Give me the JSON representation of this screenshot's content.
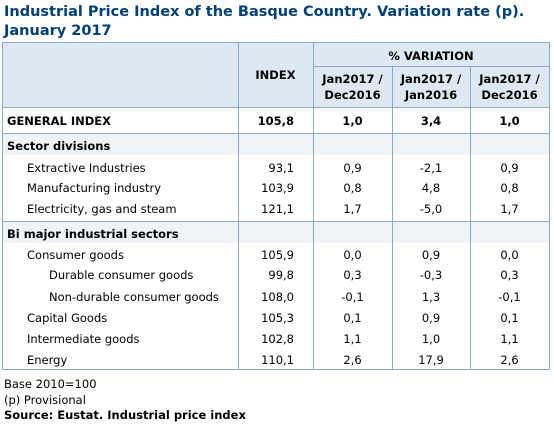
{
  "title_line1": "Industrial Price Index of the Basque Country. Variation rate (p).",
  "title_line2": "January 2017",
  "header": {
    "index": "INDEX",
    "variation": "% VARIATION",
    "col1": [
      "Jan2017 /",
      "Dec2016"
    ],
    "col2": [
      "Jan2017 /",
      "Jan2016"
    ],
    "col3": [
      "Jan2017 /",
      "Dec2016"
    ]
  },
  "general": {
    "label": "GENERAL INDEX",
    "index": "105,8",
    "v1": "1,0",
    "v2": "3,4",
    "v3": "1,0"
  },
  "sectors": {
    "title": "Sector divisions",
    "rows": [
      {
        "label": "Extractive Industries",
        "index": "93,1",
        "v1": "0,9",
        "v2": "-2,1",
        "v3": "0,9"
      },
      {
        "label": "Manufacturing industry",
        "index": "103,9",
        "v1": "0,8",
        "v2": "4,8",
        "v3": "0,8"
      },
      {
        "label": "Electricity, gas and steam",
        "index": "121,1",
        "v1": "1,7",
        "v2": "-5,0",
        "v3": "1,7"
      }
    ]
  },
  "bi": {
    "title": "Bi major industrial sectors",
    "rows": [
      {
        "label": "Consumer goods",
        "index": "105,9",
        "v1": "0,0",
        "v2": "0,9",
        "v3": "0,0"
      },
      {
        "label": "Durable consumer goods",
        "index": "99,8",
        "v1": "0,3",
        "v2": "-0,3",
        "v3": "0,3"
      },
      {
        "label": "Non-durable consumer goods",
        "index": "108,0",
        "v1": "-0,1",
        "v2": "1,3",
        "v3": "-0,1"
      },
      {
        "label": "Capital Goods",
        "index": "105,3",
        "v1": "0,1",
        "v2": "0,9",
        "v3": "0,1"
      },
      {
        "label": "Intermediate goods",
        "index": "102,8",
        "v1": "1,1",
        "v2": "1,0",
        "v3": "1,1"
      },
      {
        "label": "Energy",
        "index": "110,1",
        "v1": "2,6",
        "v2": "17,9",
        "v3": "2,6"
      }
    ]
  },
  "footer": {
    "base": "Base 2010=100",
    "provisional": "(p) Provisional",
    "source": "Source: Eustat. Industrial price index"
  },
  "colors": {
    "title": "#003f78",
    "header_bg": "#dde8f2",
    "section_bg": "#eef3f8",
    "border": "#8aaac8"
  }
}
